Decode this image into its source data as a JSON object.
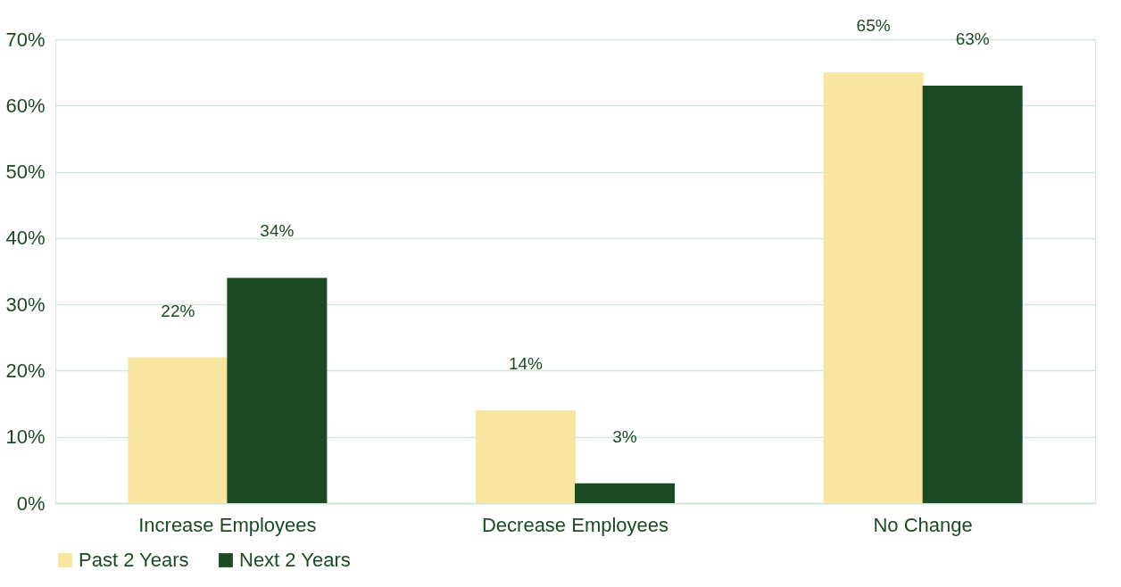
{
  "chart_data": {
    "type": "bar",
    "categories": [
      "Increase Employees",
      "Decrease Employees",
      "No Change"
    ],
    "series": [
      {
        "name": "Past 2 Years",
        "color": "#f8e6a0",
        "values": [
          22,
          14,
          65
        ],
        "value_labels": [
          "22%",
          "14%",
          "65%"
        ]
      },
      {
        "name": "Next 2 Years",
        "color": "#1b4a25",
        "values": [
          34,
          3,
          63
        ],
        "value_labels": [
          "34%",
          "3%",
          "63%"
        ]
      }
    ],
    "ylim": [
      0,
      70
    ],
    "yticks": [
      {
        "value": 0,
        "label": "0%"
      },
      {
        "value": 10,
        "label": "10%"
      },
      {
        "value": 20,
        "label": "20%"
      },
      {
        "value": 30,
        "label": "30%"
      },
      {
        "value": 40,
        "label": "40%"
      },
      {
        "value": 50,
        "label": "50%"
      },
      {
        "value": 60,
        "label": "60%"
      },
      {
        "value": 70,
        "label": "70%"
      }
    ],
    "grid": "y",
    "legend": "bottom"
  }
}
